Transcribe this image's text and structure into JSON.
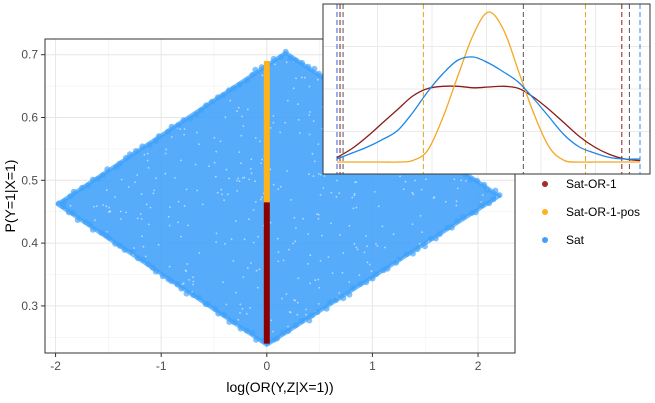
{
  "chart_data": [
    {
      "type": "scatter",
      "title": "",
      "xlabel": "log(OR(Y,Z|X=1))",
      "ylabel": "P(Y=1|X=1)",
      "xlim": [
        -2.1,
        2.35
      ],
      "ylim": [
        0.225,
        0.725
      ],
      "xticks": [
        -2,
        -1,
        0,
        1,
        2
      ],
      "xtick_labels": [
        "-2",
        "-1",
        "0",
        "1",
        "2"
      ],
      "yticks": [
        0.3,
        0.4,
        0.5,
        0.6,
        0.7
      ],
      "ytick_labels": [
        "0.3",
        "0.4",
        "0.5",
        "0.6",
        "0.7"
      ],
      "grid": true,
      "legend_position": "right",
      "series": [
        {
          "name": "Sat-OR-1",
          "color": "#8b0000",
          "shape": "vertical segment at x = 0",
          "x": [
            0,
            0
          ],
          "y": [
            0.24,
            0.465
          ]
        },
        {
          "name": "Sat-OR-1-pos",
          "color": "#ffb31a",
          "shape": "vertical segment at x = 0",
          "x": [
            0,
            0
          ],
          "y": [
            0.465,
            0.69
          ]
        },
        {
          "name": "Sat",
          "color": "#3fa1fb",
          "shape": "filled diamond region of points",
          "vertices": [
            {
              "x": -1.98,
              "y": 0.462
            },
            {
              "x": 0.18,
              "y": 0.703
            },
            {
              "x": 2.2,
              "y": 0.475
            },
            {
              "x": 0.0,
              "y": 0.238
            }
          ]
        }
      ]
    },
    {
      "type": "line",
      "title": "",
      "xlabel": "",
      "ylabel": "",
      "xlim": [
        0,
        1
      ],
      "ylim": [
        0,
        1
      ],
      "grid": true,
      "series": [
        {
          "name": "Sat-OR-1",
          "color": "#8b1a1a",
          "x": [
            0.0,
            0.05,
            0.1,
            0.15,
            0.2,
            0.25,
            0.3,
            0.35,
            0.4,
            0.45,
            0.5,
            0.55,
            0.6,
            0.65,
            0.7,
            0.75,
            0.8,
            0.85,
            0.9,
            0.95,
            1.0
          ],
          "y": [
            0.03,
            0.09,
            0.17,
            0.26,
            0.35,
            0.44,
            0.49,
            0.505,
            0.505,
            0.495,
            0.5,
            0.505,
            0.49,
            0.43,
            0.35,
            0.26,
            0.17,
            0.1,
            0.05,
            0.02,
            0.01
          ]
        },
        {
          "name": "Sat-OR-1-pos",
          "color": "#f5a623",
          "x": [
            0.0,
            0.05,
            0.1,
            0.15,
            0.2,
            0.25,
            0.3,
            0.35,
            0.4,
            0.45,
            0.5,
            0.55,
            0.6,
            0.65,
            0.7,
            0.75,
            0.8,
            0.85,
            0.9,
            0.95,
            1.0
          ],
          "y": [
            0.0,
            0.0,
            0.0,
            0.0,
            0.0,
            0.01,
            0.08,
            0.3,
            0.58,
            0.85,
            1.0,
            0.88,
            0.6,
            0.32,
            0.1,
            0.01,
            0.0,
            0.0,
            0.0,
            0.0,
            0.0
          ]
        },
        {
          "name": "Sat",
          "color": "#1e88e5",
          "x": [
            0.0,
            0.05,
            0.1,
            0.15,
            0.2,
            0.25,
            0.3,
            0.35,
            0.4,
            0.45,
            0.5,
            0.55,
            0.6,
            0.65,
            0.7,
            0.75,
            0.8,
            0.85,
            0.9,
            0.95,
            1.0
          ],
          "y": [
            0.02,
            0.06,
            0.1,
            0.15,
            0.21,
            0.33,
            0.47,
            0.59,
            0.68,
            0.7,
            0.66,
            0.6,
            0.53,
            0.42,
            0.3,
            0.18,
            0.1,
            0.06,
            0.03,
            0.02,
            0.02
          ]
        }
      ],
      "vlines": [
        {
          "x": 0.0,
          "color": "#2a5fe8"
        },
        {
          "x": 0.01,
          "color": "#8b1a1a"
        },
        {
          "x": 0.02,
          "color": "#555555"
        },
        {
          "x": 0.285,
          "color": "#e0a020"
        },
        {
          "x": 0.615,
          "color": "#555555"
        },
        {
          "x": 0.82,
          "color": "#e0a020"
        },
        {
          "x": 0.94,
          "color": "#8b1a1a"
        },
        {
          "x": 0.965,
          "color": "#555555"
        },
        {
          "x": 1.0,
          "color": "#2a8de8"
        }
      ]
    }
  ],
  "legend": {
    "items": [
      {
        "label": "Sat-OR-1",
        "color": "#a52a2a"
      },
      {
        "label": "Sat-OR-1-pos",
        "color": "#ffb31a"
      },
      {
        "label": "Sat",
        "color": "#3fa1fb"
      }
    ]
  }
}
